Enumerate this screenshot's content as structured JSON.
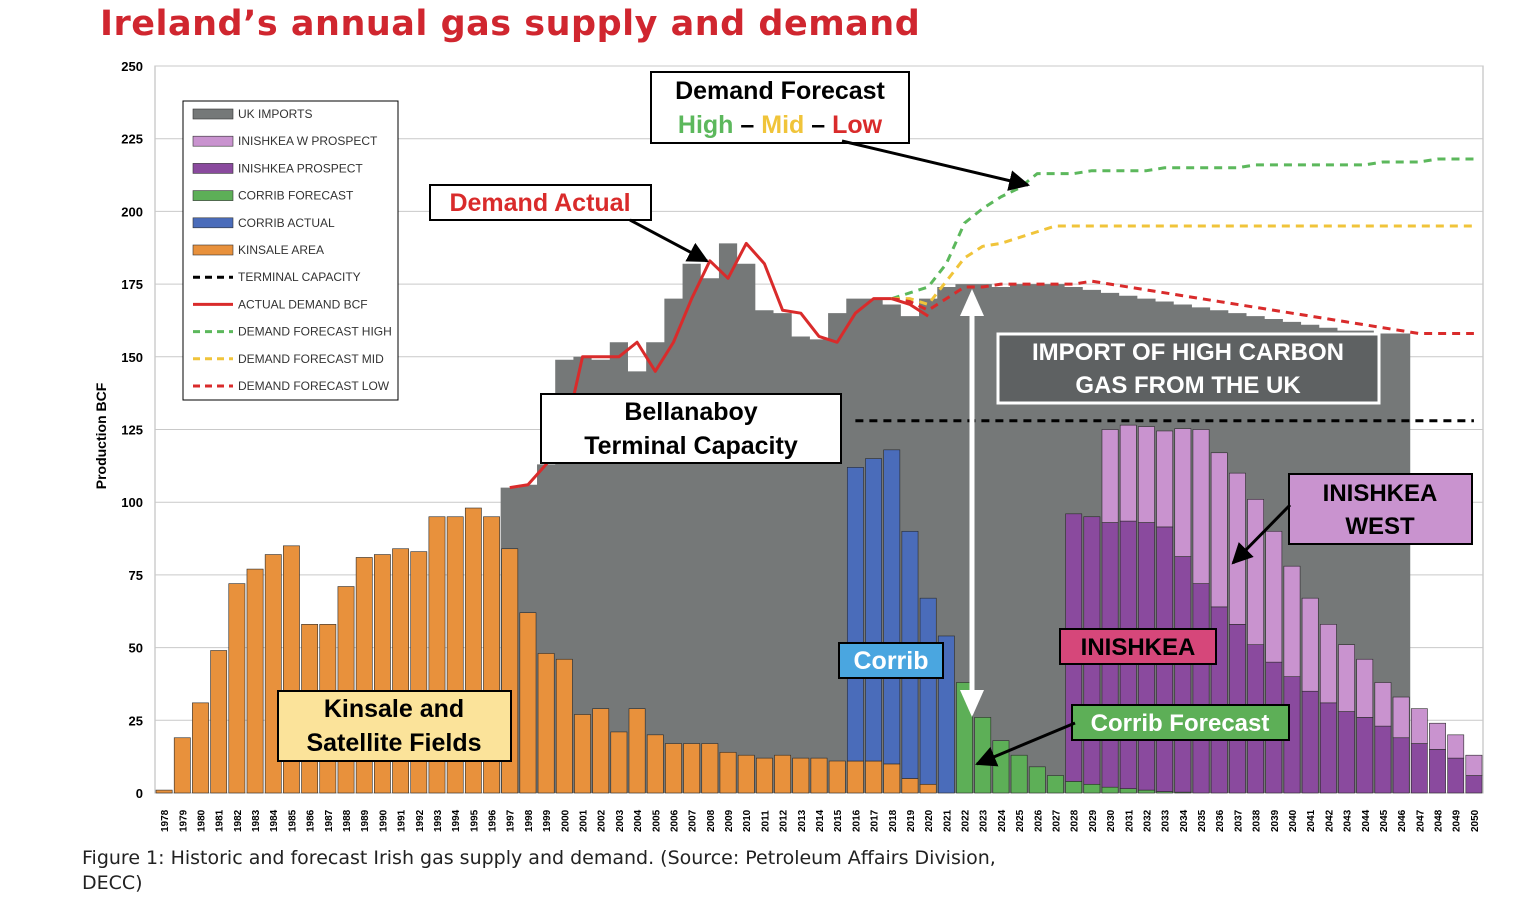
{
  "title": "Ireland’s annual gas supply and demand",
  "caption": "Figure 1: Historic and forecast Irish gas supply and demand. (Source: Petroleum Affairs Division, DECC)",
  "chart_data": {
    "type": "bar",
    "ylabel": "Production BCF",
    "ylim": [
      0,
      250
    ],
    "yticks": [
      0,
      25,
      50,
      75,
      100,
      125,
      150,
      175,
      200,
      225,
      250
    ],
    "categories": [
      "1978",
      "1979",
      "1980",
      "1981",
      "1982",
      "1983",
      "1984",
      "1985",
      "1986",
      "1987",
      "1988",
      "1989",
      "1990",
      "1991",
      "1992",
      "1993",
      "1994",
      "1995",
      "1996",
      "1997",
      "1998",
      "1999",
      "2000",
      "2001",
      "2002",
      "2003",
      "2004",
      "2005",
      "2006",
      "2007",
      "2008",
      "2009",
      "2010",
      "2011",
      "2012",
      "2013",
      "2014",
      "2015",
      "2016",
      "2017",
      "2018",
      "2019",
      "2020",
      "2021",
      "2022",
      "2023",
      "2024",
      "2025",
      "2026",
      "2027",
      "2028",
      "2029",
      "2030",
      "2031",
      "2032",
      "2033",
      "2034",
      "2035",
      "2036",
      "2037",
      "2038",
      "2039",
      "2040",
      "2041",
      "2042",
      "2043",
      "2044",
      "2045",
      "2046",
      "2047",
      "2048",
      "2049",
      "2050"
    ],
    "stacked_series": [
      {
        "name": "KINSALE AREA",
        "color": "#e8913c",
        "start": "1978",
        "values": [
          1,
          19,
          31,
          49,
          72,
          77,
          82,
          85,
          58,
          58,
          71,
          81,
          82,
          84,
          83,
          95,
          95,
          98,
          95,
          84,
          62,
          48,
          46,
          27,
          29,
          21,
          29,
          20,
          17,
          17,
          17,
          14,
          13,
          12,
          13,
          12,
          12,
          11,
          11,
          11,
          10,
          5,
          3
        ]
      },
      {
        "name": "CORRIB ACTUAL",
        "color": "#4a6cba",
        "start": "2016",
        "values": [
          101,
          104,
          108,
          85,
          64,
          54
        ]
      },
      {
        "name": "CORRIB FORECAST",
        "color": "#5daf57",
        "start": "2022",
        "values": [
          38,
          26,
          18,
          13,
          9,
          6,
          4,
          3,
          2,
          1.5,
          1,
          0.5,
          0.3
        ]
      },
      {
        "name": "INISHKEA PROSPECT",
        "color": "#8a4a9e",
        "start": "2028",
        "values": [
          92,
          92,
          91,
          92,
          92,
          91,
          81,
          72,
          64,
          58,
          51,
          45,
          40,
          35,
          31,
          28,
          26,
          23,
          19,
          17,
          15,
          12,
          6
        ]
      },
      {
        "name": "INISHKEA W PROSPECT",
        "color": "#c993cf",
        "start": "2029",
        "values": [
          0,
          32,
          33,
          33,
          33,
          44,
          53,
          53,
          52,
          50,
          45,
          38,
          32,
          27,
          23,
          20,
          15,
          14,
          12,
          9,
          8,
          7
        ]
      }
    ],
    "uk_imports": {
      "name": "UK IMPORTS",
      "color": "#757878",
      "start": "1997",
      "values": [
        105,
        106,
        113,
        149,
        150,
        149,
        155,
        145,
        155,
        170,
        182,
        177,
        189,
        182,
        166,
        165,
        157,
        156,
        165,
        170,
        170,
        168,
        164,
        170,
        174,
        175,
        175,
        174,
        175,
        175,
        175,
        174,
        173,
        172,
        171,
        170,
        169,
        168,
        167,
        166,
        165,
        164,
        163,
        162,
        161,
        160,
        159,
        159,
        158,
        158
      ]
    },
    "lines": [
      {
        "name": "TERMINAL CAPACITY",
        "color": "#000000",
        "dash": "dashed",
        "start": "2016",
        "values": [
          128,
          128,
          128,
          128,
          128,
          128,
          128,
          128,
          128,
          128,
          128,
          128,
          128,
          128,
          128,
          128,
          128,
          128,
          128,
          128,
          128,
          128,
          128,
          128,
          128,
          128,
          128,
          128,
          128,
          128,
          128,
          128,
          128,
          128,
          128
        ]
      },
      {
        "name": "ACTUAL DEMAND BCF",
        "color": "#d92b2b",
        "dash": "solid",
        "start": "1997",
        "values": [
          105,
          106,
          113,
          122,
          150,
          150,
          150,
          155,
          145,
          155,
          170,
          183,
          177,
          189,
          182,
          166,
          165,
          157,
          155,
          165,
          170,
          170,
          168,
          164
        ]
      },
      {
        "name": "DEMAND FORECAST HIGH",
        "color": "#5cb85c",
        "dash": "dashed",
        "start": "2018",
        "values": [
          170,
          172,
          174,
          182,
          196,
          201,
          205,
          208,
          213,
          213,
          213,
          214,
          214,
          214,
          214,
          215,
          215,
          215,
          215,
          215,
          216,
          216,
          216,
          216,
          216,
          216,
          216,
          217,
          217,
          217,
          218,
          218,
          218
        ]
      },
      {
        "name": "DEMAND FORECAST MID",
        "color": "#f0c43a",
        "dash": "dashed",
        "start": "2018",
        "values": [
          170,
          170,
          168,
          176,
          184,
          188,
          189,
          191,
          193,
          195,
          195,
          195,
          195,
          195,
          195,
          195,
          195,
          195,
          195,
          195,
          195,
          195,
          195,
          195,
          195,
          195,
          195,
          195,
          195,
          195,
          195,
          195,
          195
        ]
      },
      {
        "name": "DEMAND FORECAST LOW",
        "color": "#d92b2b",
        "dash": "dashed",
        "start": "2018",
        "values": [
          170,
          169,
          166,
          170,
          174,
          174,
          175,
          175,
          175,
          175,
          175,
          176,
          175,
          174,
          173,
          172,
          171,
          170,
          169,
          168,
          167,
          166,
          165,
          164,
          163,
          162,
          161,
          160,
          159,
          158,
          158,
          158,
          158
        ]
      }
    ],
    "legend": [
      "UK IMPORTS",
      "INISHKEA W PROSPECT",
      "INISHKEA PROSPECT",
      "CORRIB FORECAST",
      "CORRIB ACTUAL",
      "KINSALE AREA",
      "TERMINAL CAPACITY",
      "ACTUAL DEMAND BCF",
      "DEMAND FORECAST HIGH",
      "DEMAND FORECAST MID",
      "DEMAND FORECAST LOW"
    ],
    "annotations": {
      "demand_forecast": {
        "line1": "Demand Forecast",
        "high": "High",
        "sep1": " – ",
        "mid": "Mid",
        "sep2": " – ",
        "low": "Low"
      },
      "demand_actual": "Demand Actual",
      "import_line1": "IMPORT OF HIGH CARBON",
      "import_line2": "GAS FROM THE UK",
      "bellanaboy_line1": "Bellanaboy",
      "bellanaboy_line2": "Terminal Capacity",
      "inishkea_west_line1": "INISHKEA",
      "inishkea_west_line2": "WEST",
      "inishkea": "INISHKEA",
      "corrib": "Corrib",
      "corrib_forecast": "Corrib Forecast",
      "kinsale_line1": "Kinsale and",
      "kinsale_line2": "Satellite Fields"
    }
  }
}
